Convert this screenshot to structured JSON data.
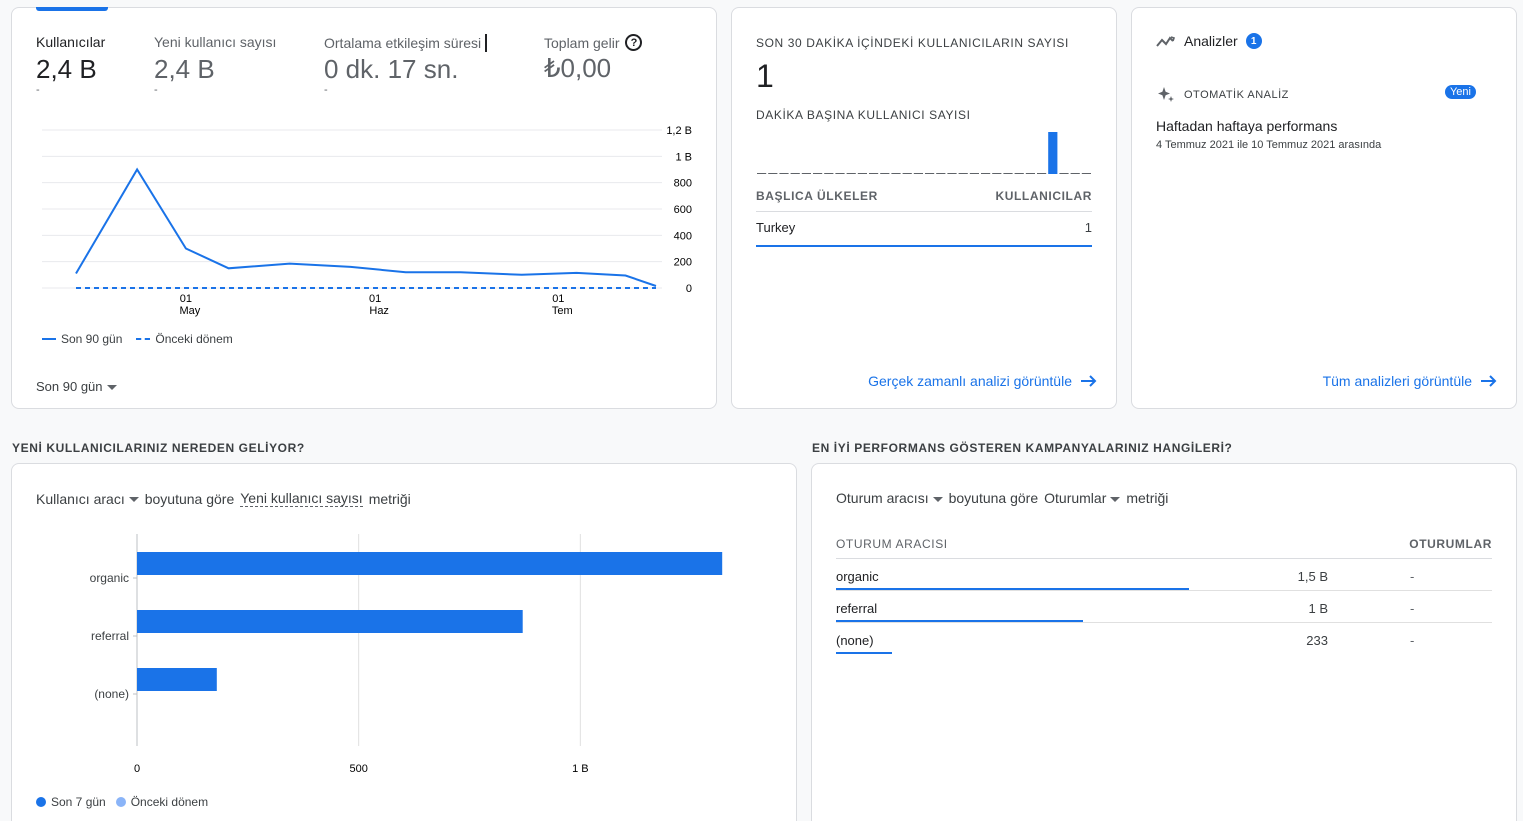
{
  "overview": {
    "metrics": [
      {
        "label": "Kullanıcılar",
        "value": "2,4 B",
        "sub": "-"
      },
      {
        "label": "Yeni kullanıcı sayısı",
        "value": "2,4 B",
        "sub": "-"
      },
      {
        "label": "Ortalama etkileşim süresi",
        "value": "0 dk. 17 sn.",
        "sub": "-"
      },
      {
        "label": "Toplam gelir",
        "value": "₺0,00",
        "sub": ""
      }
    ],
    "date_range": "Son 90 gün",
    "legend": {
      "current": "Son 90 gün",
      "previous": "Önceki dönem"
    }
  },
  "chart_data": [
    {
      "type": "line",
      "x": [
        "2021-04-13",
        "2021-04-23",
        "2021-05-01",
        "2021-05-08",
        "2021-05-18",
        "2021-05-28",
        "2021-06-06",
        "2021-06-15",
        "2021-06-25",
        "2021-07-04",
        "2021-07-12",
        "2021-07-17"
      ],
      "series": [
        {
          "name": "Son 90 gün",
          "values": [
            110,
            900,
            300,
            150,
            185,
            160,
            120,
            120,
            100,
            115,
            95,
            15
          ]
        },
        {
          "name": "Önceki dönem",
          "values": [
            0,
            0,
            0,
            0,
            0,
            0,
            0,
            0,
            0,
            0,
            0,
            0
          ]
        }
      ],
      "yticks": [
        "1,2 B",
        "1 B",
        "800",
        "600",
        "400",
        "200",
        "0"
      ],
      "ylim": [
        0,
        1200
      ],
      "xticks": [
        {
          "day": "01",
          "month": "May"
        },
        {
          "day": "01",
          "month": "Haz"
        },
        {
          "day": "01",
          "month": "Tem"
        }
      ]
    },
    {
      "type": "bar",
      "orientation": "horizontal",
      "categories": [
        "organic",
        "referral",
        "(none)"
      ],
      "series": [
        {
          "name": "Son 7 gün",
          "values": [
            1320,
            870,
            180
          ]
        }
      ],
      "xticks": [
        "0",
        "500",
        "1 B"
      ],
      "xlim": [
        0,
        1500
      ],
      "legend": [
        "Son 7 gün",
        "Önceki dönem"
      ]
    },
    {
      "type": "bar",
      "values_per_minute": [
        0,
        0,
        0,
        0,
        0,
        0,
        0,
        0,
        0,
        0,
        0,
        0,
        0,
        0,
        0,
        0,
        0,
        0,
        0,
        0,
        0,
        0,
        0,
        0,
        0,
        0,
        1,
        0,
        0,
        0
      ],
      "ylim": [
        0,
        1
      ]
    }
  ],
  "realtime": {
    "title": "SON 30 DAKİKA İÇİNDEKİ KULLANICILARIN SAYISI",
    "value": "1",
    "per_minute_label": "DAKİKA BAŞINA KULLANICI SAYISI",
    "countries_header": "BAŞLICA ÜLKELER",
    "users_header": "KULLANICILAR",
    "rows": [
      {
        "country": "Turkey",
        "users": "1"
      }
    ],
    "link": "Gerçek zamanlı analizi görüntüle"
  },
  "insights": {
    "title": "Analizler",
    "badge": "1",
    "auto_label": "OTOMATİK ANALİZ",
    "new_badge": "Yeni",
    "item_title": "Haftadan haftaya performans",
    "item_date": "4 Temmuz 2021 ile 10 Temmuz 2021 arasında",
    "link": "Tüm analizleri görüntüle"
  },
  "new_users": {
    "section_title": "YENİ KULLANICILARINIZ NEREDEN GELİYOR?",
    "dimension": "Kullanıcı aracı",
    "by_text": "boyutuna göre",
    "metric": "Yeni kullanıcı sayısı",
    "metric_suffix": "metriği",
    "legend_current": "Son 7 gün",
    "legend_previous": "Önceki dönem"
  },
  "campaigns": {
    "section_title": "EN İYİ PERFORMANS GÖSTEREN KAMPANYALARINIZ HANGİLERİ?",
    "dimension": "Oturum aracısı",
    "by_text": "boyutuna göre",
    "metric": "Oturumlar",
    "metric_suffix": "metriği",
    "col1": "OTURUM ARACISI",
    "col2": "OTURUMLAR",
    "rows": [
      {
        "name": "organic",
        "value": "1,5 B",
        "prev": "-",
        "share": 1.0
      },
      {
        "name": "referral",
        "value": "1 B",
        "prev": "-",
        "share": 0.7
      },
      {
        "name": "(none)",
        "value": "233",
        "prev": "-",
        "share": 0.16
      }
    ]
  }
}
